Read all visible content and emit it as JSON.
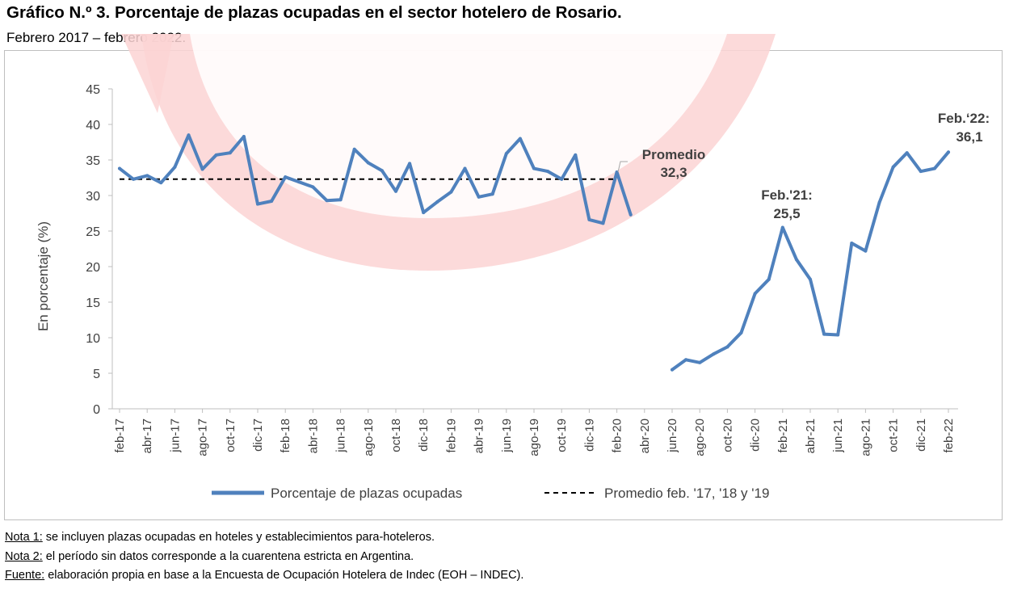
{
  "header": {
    "title": "Gráfico N.º 3. Porcentaje de plazas ocupadas en el sector hotelero de Rosario.",
    "subtitle": "Febrero 2017 – febrero 2022."
  },
  "notes": [
    {
      "label": "Nota 1:",
      "text": " se incluyen plazas ocupadas en hoteles y establecimientos para-hoteleros."
    },
    {
      "label": "Nota 2:",
      "text": " el período sin datos corresponde a la cuarentena estricta en Argentina."
    },
    {
      "label": "Fuente:",
      "text": " elaboración propia en base a la Encuesta de Ocupación Hotelera de Indec (EOH – INDEC)."
    }
  ],
  "colors": {
    "series": "#4F81BD",
    "average": "#000000",
    "axis": "#bfbfbf",
    "text": "#404040",
    "watermark": "#fbd4d4"
  },
  "chart_data": {
    "type": "line",
    "ylabel": "En porcentaje (%)",
    "ylim": [
      0,
      45
    ],
    "yticks": [
      0,
      5,
      10,
      15,
      20,
      25,
      30,
      35,
      40,
      45
    ],
    "grid": false,
    "legend_placement": "bottom",
    "x": [
      "feb-17",
      "mar-17",
      "abr-17",
      "may-17",
      "jun-17",
      "jul-17",
      "ago-17",
      "sep-17",
      "oct-17",
      "nov-17",
      "dic-17",
      "ene-18",
      "feb-18",
      "mar-18",
      "abr-18",
      "may-18",
      "jun-18",
      "jul-18",
      "ago-18",
      "sep-18",
      "oct-18",
      "nov-18",
      "dic-18",
      "ene-19",
      "feb-19",
      "mar-19",
      "abr-19",
      "may-19",
      "jun-19",
      "jul-19",
      "ago-19",
      "sep-19",
      "oct-19",
      "nov-19",
      "dic-19",
      "ene-20",
      "feb-20",
      "mar-20",
      "abr-20",
      "may-20",
      "jun-20",
      "jul-20",
      "ago-20",
      "sep-20",
      "oct-20",
      "nov-20",
      "dic-20",
      "ene-21",
      "feb-21",
      "mar-21",
      "abr-21",
      "may-21",
      "jun-21",
      "jul-21",
      "ago-21",
      "sep-21",
      "oct-21",
      "nov-21",
      "dic-21",
      "ene-22",
      "feb-22"
    ],
    "xtick_labels": [
      "feb-17",
      "abr-17",
      "jun-17",
      "ago-17",
      "oct-17",
      "dic-17",
      "feb-18",
      "abr-18",
      "jun-18",
      "ago-18",
      "oct-18",
      "dic-18",
      "feb-19",
      "abr-19",
      "jun-19",
      "ago-19",
      "oct-19",
      "dic-19",
      "feb-20",
      "abr-20",
      "jun-20",
      "ago-20",
      "oct-20",
      "dic-20",
      "feb-21",
      "abr-21",
      "jun-21",
      "ago-21",
      "oct-21",
      "dic-21",
      "feb-22"
    ],
    "series": [
      {
        "name": "Porcentaje de plazas ocupadas",
        "values": [
          33.8,
          32.3,
          32.8,
          31.8,
          34.0,
          38.5,
          33.7,
          35.7,
          36.0,
          38.3,
          28.8,
          29.2,
          32.6,
          31.9,
          31.2,
          29.3,
          29.4,
          36.5,
          34.6,
          33.5,
          30.6,
          34.5,
          27.6,
          29.1,
          30.5,
          33.8,
          29.8,
          30.2,
          35.9,
          38.0,
          33.8,
          33.4,
          32.3,
          35.7,
          26.6,
          26.1,
          33.3,
          27.3,
          null,
          null,
          5.5,
          6.9,
          6.5,
          7.7,
          8.7,
          10.7,
          16.2,
          18.2,
          25.5,
          21.0,
          18.2,
          10.5,
          10.4,
          23.3,
          22.2,
          29.0,
          34.0,
          36.0,
          33.4,
          33.8,
          36.1
        ]
      },
      {
        "name": "Promedio feb. '17, '18 y '19",
        "style": "dashed",
        "value": 32.3,
        "x_range": [
          "feb-17",
          "feb-20"
        ]
      }
    ],
    "annotations": [
      {
        "name": "avg",
        "lines": [
          "Promedio",
          "32,3"
        ]
      },
      {
        "name": "feb21",
        "lines": [
          "Feb.'21:",
          "25,5"
        ]
      },
      {
        "name": "feb22",
        "lines": [
          "Feb.‘22:",
          "36,1"
        ]
      }
    ]
  }
}
